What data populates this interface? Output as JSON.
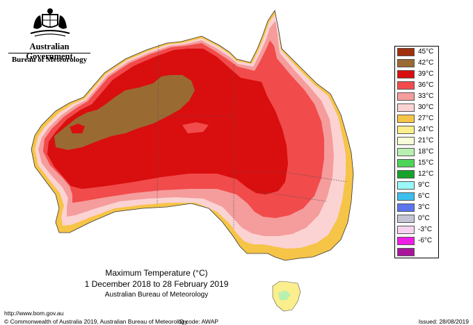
{
  "header": {
    "government": "Australian Government",
    "agency": "Bureau of Meteorology"
  },
  "map": {
    "title": "Maximum Temperature (°C)",
    "period": "1 December 2018 to 28 February 2019",
    "organisation": "Australian Bureau of Meteorology",
    "region": "Australia"
  },
  "legend": [
    {
      "label": "45°C",
      "color": "#a0300d"
    },
    {
      "label": "42°C",
      "color": "#9a6a33"
    },
    {
      "label": "39°C",
      "color": "#d90e0e"
    },
    {
      "label": "36°C",
      "color": "#f14b4b"
    },
    {
      "label": "33°C",
      "color": "#f59c9c"
    },
    {
      "label": "30°C",
      "color": "#fbd3d3"
    },
    {
      "label": "27°C",
      "color": "#f6c447"
    },
    {
      "label": "24°C",
      "color": "#fbee8c"
    },
    {
      "label": "21°C",
      "color": "#f8fcd8"
    },
    {
      "label": "18°C",
      "color": "#b8f0b0"
    },
    {
      "label": "15°C",
      "color": "#4fd45a"
    },
    {
      "label": "12°C",
      "color": "#16a32b"
    },
    {
      "label": "9°C",
      "color": "#9af8f8"
    },
    {
      "label": "6°C",
      "color": "#3cbfef"
    },
    {
      "label": "3°C",
      "color": "#5a75ee"
    },
    {
      "label": "0°C",
      "color": "#c4c4d6"
    },
    {
      "label": "-3°C",
      "color": "#f6d4f1"
    },
    {
      "label": "-6°C",
      "color": "#ee1ee6"
    },
    {
      "label": "",
      "color": "#a8159a"
    }
  ],
  "footer": {
    "url": "http://www.bom.gov.au",
    "copyright": "© Commonwealth of Australia 2019, Australian Bureau of Meteorology",
    "id_code": "ID code: AWAP",
    "issued": "Issued: 28/08/2019"
  }
}
